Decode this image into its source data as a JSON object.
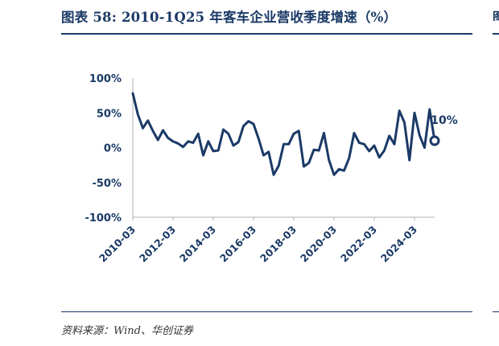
{
  "header": {
    "title": "图表 58:  2010-1Q25 年客车企业营收季度增速（%）"
  },
  "footer": {
    "source": "资料来源：Wind、华创证券"
  },
  "colors": {
    "line": "#1b3a66",
    "accent": "#1b3a66",
    "text": "#1b3a66"
  },
  "chart_data": {
    "type": "line",
    "title": "2010-1Q25 年客车企业营收季度增速（%）",
    "xlabel": "",
    "ylabel": "",
    "ylim": [
      -100,
      100
    ],
    "yticks": [
      100,
      50,
      0,
      -50,
      -100
    ],
    "ytick_labels": [
      "100%",
      "50%",
      "0%",
      "-50%",
      "-100%"
    ],
    "xtick_labels": [
      "2010-03",
      "2012-03",
      "2014-03",
      "2016-03",
      "2018-03",
      "2020-03",
      "2022-03",
      "2024-03"
    ],
    "grid": false,
    "legend": "none",
    "series": [
      {
        "name": "",
        "x": [
          "2010-03",
          "2010-06",
          "2010-09",
          "2010-12",
          "2011-03",
          "2011-06",
          "2011-09",
          "2011-12",
          "2012-03",
          "2012-06",
          "2012-09",
          "2012-12",
          "2013-03",
          "2013-06",
          "2013-09",
          "2013-12",
          "2014-03",
          "2014-06",
          "2014-09",
          "2014-12",
          "2015-03",
          "2015-06",
          "2015-09",
          "2015-12",
          "2016-03",
          "2016-06",
          "2016-09",
          "2016-12",
          "2017-03",
          "2017-06",
          "2017-09",
          "2017-12",
          "2018-03",
          "2018-06",
          "2018-09",
          "2018-12",
          "2019-03",
          "2019-06",
          "2019-09",
          "2019-12",
          "2020-03",
          "2020-06",
          "2020-09",
          "2020-12",
          "2021-03",
          "2021-06",
          "2021-09",
          "2021-12",
          "2022-03",
          "2022-06",
          "2022-09",
          "2022-12",
          "2023-03",
          "2023-06",
          "2023-09",
          "2023-12",
          "2024-03",
          "2024-06",
          "2024-09",
          "2024-12",
          "2025-03"
        ],
        "values": [
          78,
          48,
          28,
          39,
          24,
          11,
          25,
          14,
          9,
          6,
          1,
          9,
          7,
          20,
          -11,
          9,
          -5,
          -4,
          26,
          20,
          3,
          8,
          31,
          38,
          34,
          13,
          -11,
          -6,
          -39,
          -26,
          5,
          5,
          20,
          24,
          -27,
          -22,
          -3,
          -4,
          21,
          -18,
          -39,
          -31,
          -33,
          -15,
          21,
          7,
          5,
          -5,
          3,
          -14,
          -4,
          17,
          5,
          53,
          36,
          -18,
          50,
          18,
          0,
          55,
          10
        ],
        "last_label": "10%"
      }
    ]
  }
}
